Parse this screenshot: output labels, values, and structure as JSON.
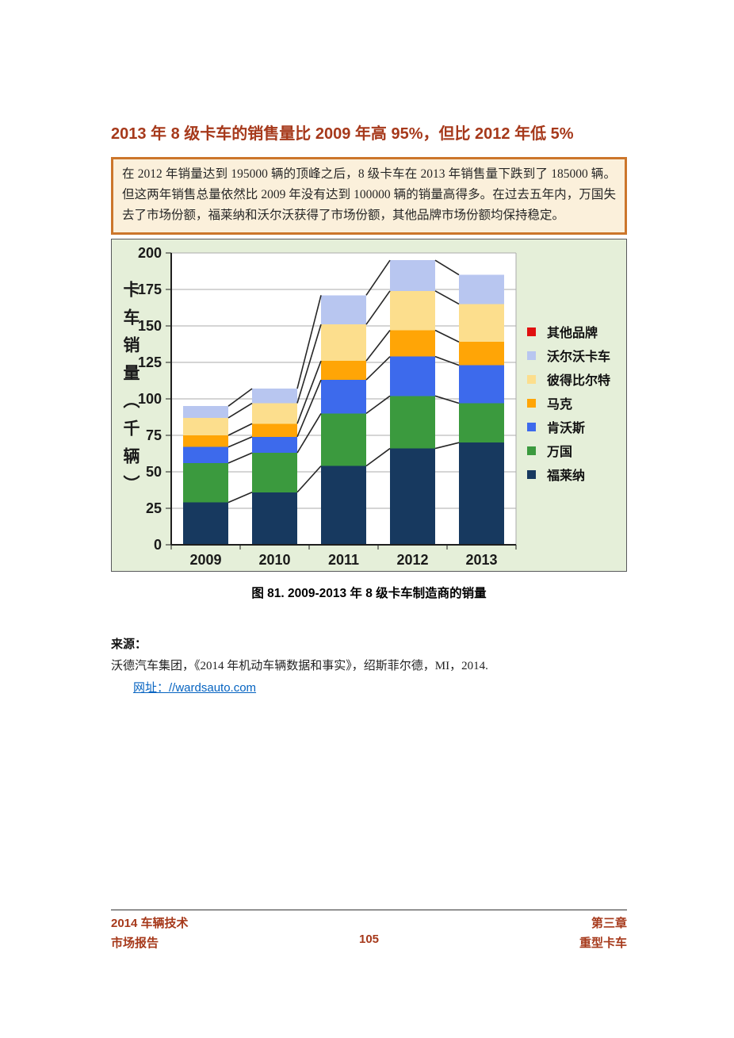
{
  "page": {
    "title": "2013 年 8 级卡车的销售量比 2009 年高 95%，但比 2012 年低 5%",
    "callout": "在 2012 年销量达到 195000 辆的顶峰之后，8 级卡车在 2013 年销售量下跌到了 185000 辆。但这两年销售总量依然比 2009 年没有达到 100000 辆的销量高得多。在过去五年内，万国失去了市场份额，福莱纳和沃尔沃获得了市场份额，其他品牌市场份额均保持稳定。",
    "caption": "图 81. 2009-2013 年 8 级卡车制造商的销量",
    "source_label": "来源：",
    "source_text": "沃德汽车集团，《2014 年机动车辆数据和事实》，绍斯菲尔德，MI，2014.",
    "source_link": "网址：//wardsauto.com",
    "footer": {
      "left_line1": "2014 车辆技术",
      "left_line2": "市场报告",
      "page_number": "105",
      "right_line1": "第三章",
      "right_line2": "重型卡车"
    }
  },
  "colors": {
    "heading_red": "#A6391B",
    "callout_border": "#CC762B",
    "callout_bg": "#FBF0DB",
    "chart_bg": "#E5EFD9",
    "plot_bg": "#FFFFFF",
    "gridline": "#ABABAB",
    "axis": "#1F1F1F",
    "series_line": "#262626",
    "link_blue": "#0563C1",
    "footer_red": "#A6391B"
  },
  "chart_data": {
    "type": "bar",
    "stacked": true,
    "title": "",
    "categories": [
      "2009",
      "2010",
      "2011",
      "2012",
      "2013"
    ],
    "series": [
      {
        "name": "福莱纳",
        "color": "#17395F",
        "values": [
          29,
          36,
          54,
          66,
          70
        ]
      },
      {
        "name": "万国",
        "color": "#3B9A3E",
        "values": [
          27,
          27,
          36,
          36,
          27
        ]
      },
      {
        "name": "肯沃斯",
        "color": "#3D6AEC",
        "values": [
          11,
          11,
          23,
          27,
          26
        ]
      },
      {
        "name": "马克",
        "color": "#FFA506",
        "values": [
          8,
          9,
          13,
          18,
          16
        ]
      },
      {
        "name": "彼得比尔特",
        "color": "#FCDE8D",
        "values": [
          12,
          14,
          25,
          27,
          26
        ]
      },
      {
        "name": "沃尔沃卡车",
        "color": "#B8C6F0",
        "values": [
          8,
          10,
          20,
          21,
          20
        ]
      },
      {
        "name": "其他品牌",
        "color": "#E01010",
        "values": [
          0,
          0,
          0,
          0,
          0
        ]
      }
    ],
    "totals": [
      95,
      107,
      171,
      195,
      185
    ],
    "legend_order_top_to_bottom": [
      "其他品牌",
      "沃尔沃卡车",
      "彼得比尔特",
      "马克",
      "肯沃斯",
      "万国",
      "福莱纳"
    ],
    "legend_position": "right",
    "xlabel": "",
    "ylabel": "卡车销量（千辆）",
    "ylim": [
      0,
      200
    ],
    "ytick_step": 25,
    "grid": true,
    "series_lines": true
  }
}
